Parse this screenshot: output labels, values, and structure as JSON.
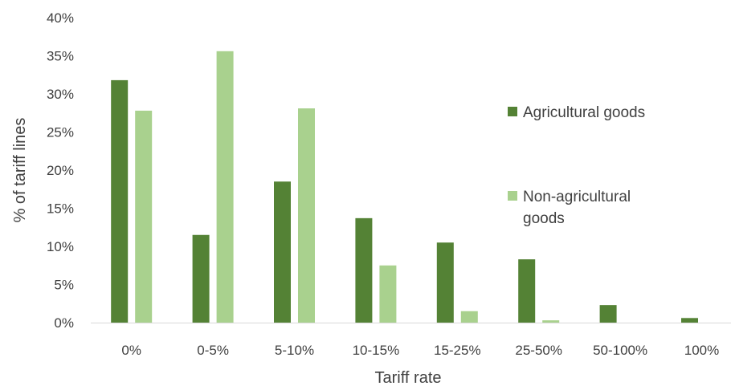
{
  "chart_data": {
    "type": "bar",
    "categories": [
      "0%",
      "0-5%",
      "5-10%",
      "10-15%",
      "15-25%",
      "25-50%",
      "50-100%",
      "100%"
    ],
    "series": [
      {
        "name": "Agricultural goods",
        "color": "#548235",
        "values": [
          31.8,
          11.5,
          18.5,
          13.7,
          10.5,
          8.3,
          2.3,
          0.6
        ]
      },
      {
        "name": "Non-agricultural goods",
        "color": "#a9d18e",
        "values": [
          27.8,
          35.6,
          28.1,
          7.5,
          1.5,
          0.3,
          0,
          0
        ]
      }
    ],
    "xlabel": "Tariff rate",
    "ylabel": "% of tariff lines",
    "ylim": [
      0,
      40
    ],
    "yticks": [
      "0%",
      "5%",
      "10%",
      "15%",
      "20%",
      "25%",
      "30%",
      "35%",
      "40%"
    ],
    "legend_position": "right",
    "grid": false
  }
}
